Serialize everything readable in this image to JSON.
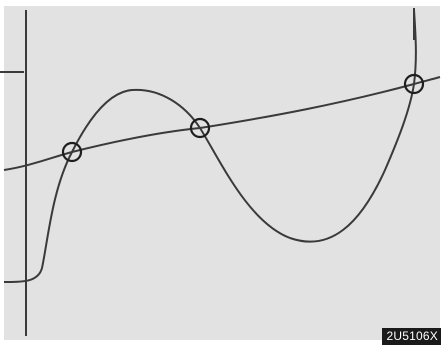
{
  "figure": {
    "code": "2U5106X",
    "colors": {
      "panel": "#e2e2e2",
      "line": "#3a3a3a",
      "tag_background": "#1a1a1a",
      "tag_text": "#ffffff"
    }
  },
  "elements": {
    "curves": [
      {
        "name": "sloped-line"
      },
      {
        "name": "wave-curve"
      }
    ],
    "intersection_markers": 3,
    "vertical_lines": 2
  }
}
